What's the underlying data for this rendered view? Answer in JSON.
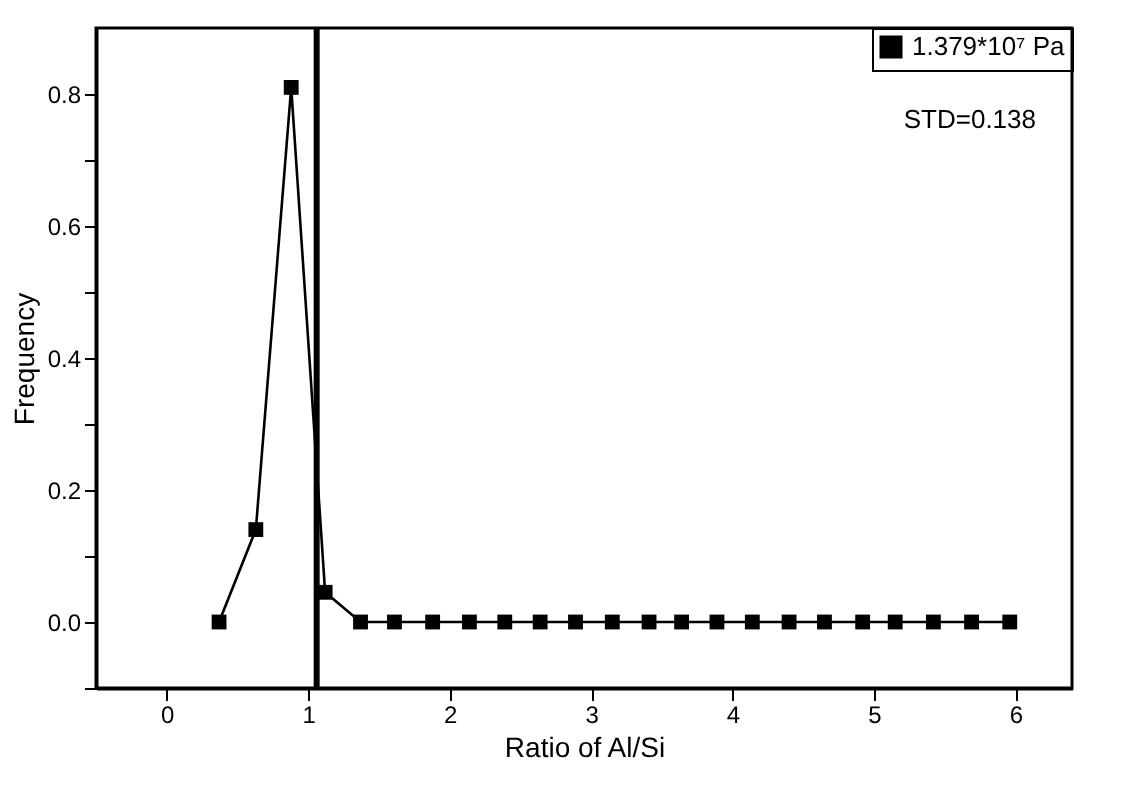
{
  "chart_data": {
    "type": "line",
    "xlabel": "Ratio of Al/Si",
    "ylabel": "Frequency",
    "x": [
      0.37,
      0.63,
      0.88,
      1.12,
      1.37,
      1.61,
      1.88,
      2.14,
      2.39,
      2.64,
      2.89,
      3.15,
      3.41,
      3.64,
      3.89,
      4.14,
      4.4,
      4.65,
      4.92,
      5.15,
      5.42,
      5.69,
      5.96
    ],
    "series": [
      {
        "name": "1.379*10⁷ Pa",
        "color": "#000000",
        "values": [
          0,
          0.14,
          0.81,
          0.045,
          0,
          0,
          0,
          0,
          0,
          0,
          0,
          0,
          0,
          0,
          0,
          0,
          0,
          0,
          0,
          0,
          0,
          0,
          0
        ]
      }
    ],
    "xlim": [
      -0.5,
      6.4
    ],
    "xticks": [
      0,
      1,
      2,
      3,
      4,
      5,
      6
    ],
    "ylim": [
      -0.1,
      0.9
    ],
    "yticks": [
      {
        "value": -0.1,
        "label": null
      },
      {
        "value": 0,
        "label": "0.0"
      },
      {
        "value": 0.1,
        "label": null
      },
      {
        "value": 0.2,
        "label": "0.2"
      },
      {
        "value": 0.3,
        "label": null
      },
      {
        "value": 0.4,
        "label": "0.4"
      },
      {
        "value": 0.5,
        "label": null
      },
      {
        "value": 0.6,
        "label": "0.6"
      },
      {
        "value": 0.7,
        "label": null
      },
      {
        "value": 0.8,
        "label": "0.8"
      }
    ],
    "ref_lines": [
      {
        "axis": "x",
        "value": 1.06,
        "color": "#000000"
      }
    ],
    "annotations": [
      "STD=0.138"
    ],
    "grid": false,
    "legend": "top right",
    "marker": "square",
    "line_style": "solid"
  }
}
